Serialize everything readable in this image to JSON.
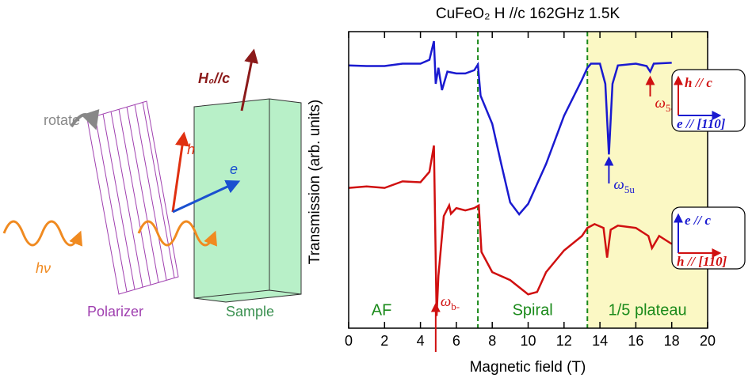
{
  "diagram": {
    "rotate": "rotate",
    "field": "H₀//c",
    "h": "h",
    "e": "e",
    "photon": "hν",
    "polarizer": "Polarizer",
    "sample": "Sample"
  },
  "chart_data": {
    "type": "line",
    "title": "CuFeO₂ H //c 162GHz 1.5K",
    "x_label": "Magnetic field (T)",
    "y_label": "Transmission (arb. units)",
    "xlim": [
      0,
      20
    ],
    "xticks": [
      0,
      2,
      4,
      6,
      8,
      10,
      12,
      14,
      16,
      18,
      20
    ],
    "ylim": [
      0,
      1
    ],
    "series": [
      {
        "name": "e // [110]",
        "color": "#1a1ad0",
        "x": [
          0,
          1,
          2,
          3,
          4,
          4.5,
          4.75,
          4.85,
          5.0,
          5.2,
          5.5,
          6,
          6.5,
          7.0,
          7.2,
          7.35,
          8,
          8.5,
          9,
          9.5,
          10,
          11,
          12,
          13,
          13.3,
          13.5,
          14,
          14.3,
          14.5,
          14.7,
          15,
          16,
          16.6,
          16.8,
          17,
          18
        ],
        "values": [
          0.886,
          0.884,
          0.884,
          0.892,
          0.892,
          0.905,
          0.968,
          0.824,
          0.878,
          0.803,
          0.865,
          0.859,
          0.859,
          0.87,
          0.889,
          0.784,
          0.689,
          0.554,
          0.424,
          0.384,
          0.419,
          0.554,
          0.716,
          0.838,
          0.878,
          0.892,
          0.892,
          0.824,
          0.586,
          0.824,
          0.886,
          0.892,
          0.884,
          0.865,
          0.892,
          0.895
        ]
      },
      {
        "name": "h // [110]",
        "color": "#d01010",
        "x": [
          0,
          1,
          2,
          3,
          4,
          4.5,
          4.75,
          4.9,
          5.0,
          5.3,
          5.6,
          5.7,
          6,
          6.5,
          7.0,
          7.25,
          7.4,
          8,
          9,
          10,
          10.5,
          11,
          12,
          13,
          13.3,
          13.7,
          14.2,
          14.4,
          14.6,
          15,
          16,
          16.7,
          16.9,
          17.3,
          18
        ],
        "values": [
          0.473,
          0.478,
          0.473,
          0.495,
          0.492,
          0.527,
          0.616,
          0.041,
          0.176,
          0.378,
          0.414,
          0.386,
          0.405,
          0.397,
          0.405,
          0.414,
          0.257,
          0.189,
          0.162,
          0.114,
          0.122,
          0.189,
          0.262,
          0.311,
          0.338,
          0.351,
          0.338,
          0.238,
          0.332,
          0.346,
          0.338,
          0.311,
          0.27,
          0.311,
          0.284
        ]
      }
    ],
    "phase_boundaries": [
      7.2,
      13.3
    ],
    "regions": [
      "AF",
      "Spiral",
      "1/5 plateau"
    ],
    "annotations": [
      {
        "symbol": "ω",
        "sub": "b-",
        "x": 4.85,
        "color": "#d01010"
      },
      {
        "symbol": "ω",
        "sub": "5u",
        "x": 14.5,
        "color": "#1a1ad0"
      },
      {
        "symbol": "ω",
        "sub": "5-",
        "x": 16.8,
        "color": "#d01010"
      }
    ],
    "polarization_keys": [
      {
        "vertical": "h // c",
        "horizontal": "e // [110]",
        "vertical_color": "#d01010",
        "horizontal_color": "#1a1ad0"
      },
      {
        "vertical": "e // c",
        "horizontal": "h // [110]",
        "vertical_color": "#1a1ad0",
        "horizontal_color": "#d01010"
      }
    ]
  }
}
